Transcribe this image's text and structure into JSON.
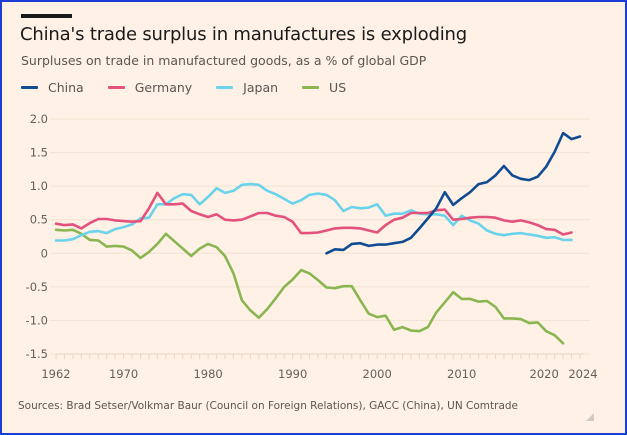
{
  "header": {
    "title": "China's trade surplus in manufactures is exploding",
    "subtitle": "Surpluses on trade in manufactured goods, as a % of global GDP"
  },
  "footer": {
    "source": "Sources: Brad Setser/Volkmar Baur (Council on Foreign Relations), GACC (China), UN Comtrade"
  },
  "chart_data": {
    "type": "line",
    "title": "China's trade surplus in manufactures is exploding",
    "subtitle": "Surpluses on trade in manufactured goods, as a % of global GDP",
    "xlabel": "",
    "ylabel": "",
    "xlim": [
      1962,
      2024
    ],
    "ylim": [
      -1.5,
      2.0
    ],
    "grid": true,
    "legend_position": "top-left",
    "x_ticks": [
      1962,
      1970,
      1980,
      1990,
      2000,
      2010,
      2020,
      2024
    ],
    "x_tick_labels": [
      "1962",
      "1970",
      "1980",
      "1990",
      "2000",
      "2010",
      "2020",
      "2024"
    ],
    "y_ticks": [
      2.0,
      1.5,
      1.0,
      0.5,
      0,
      -0.5,
      -1.0,
      -1.5
    ],
    "y_tick_labels": [
      "2.0",
      "1.5",
      "1.0",
      "0.5",
      "0",
      "-0.5",
      "-1.0",
      "-1.5"
    ],
    "series": [
      {
        "name": "China",
        "color": "#0f4c92",
        "start_year": 1994,
        "values": [
          0.0,
          0.06,
          0.05,
          0.14,
          0.15,
          0.11,
          0.13,
          0.13,
          0.15,
          0.17,
          0.23,
          0.37,
          0.52,
          0.67,
          0.91,
          0.72,
          0.82,
          0.91,
          1.03,
          1.06,
          1.16,
          1.3,
          1.16,
          1.11,
          1.09,
          1.14,
          1.29,
          1.51,
          1.79,
          1.7,
          1.74
        ]
      },
      {
        "name": "Germany",
        "color": "#e3527d",
        "start_year": 1962,
        "values": [
          0.44,
          0.42,
          0.43,
          0.37,
          0.45,
          0.51,
          0.51,
          0.49,
          0.48,
          0.47,
          0.48,
          0.67,
          0.9,
          0.73,
          0.73,
          0.74,
          0.63,
          0.58,
          0.54,
          0.58,
          0.5,
          0.49,
          0.5,
          0.55,
          0.6,
          0.6,
          0.56,
          0.54,
          0.47,
          0.3,
          0.3,
          0.31,
          0.34,
          0.37,
          0.38,
          0.38,
          0.37,
          0.34,
          0.31,
          0.42,
          0.5,
          0.53,
          0.6,
          0.6,
          0.6,
          0.64,
          0.65,
          0.5,
          0.51,
          0.53,
          0.54,
          0.54,
          0.53,
          0.49,
          0.47,
          0.49,
          0.46,
          0.42,
          0.36,
          0.35,
          0.28,
          0.31
        ]
      },
      {
        "name": "Japan",
        "color": "#6ad3ec",
        "start_year": 1962,
        "values": [
          0.19,
          0.19,
          0.21,
          0.27,
          0.32,
          0.33,
          0.3,
          0.36,
          0.39,
          0.43,
          0.52,
          0.53,
          0.73,
          0.73,
          0.82,
          0.88,
          0.87,
          0.73,
          0.84,
          0.97,
          0.9,
          0.93,
          1.02,
          1.03,
          1.02,
          0.93,
          0.88,
          0.81,
          0.74,
          0.79,
          0.87,
          0.89,
          0.87,
          0.79,
          0.63,
          0.69,
          0.67,
          0.68,
          0.73,
          0.56,
          0.59,
          0.59,
          0.64,
          0.59,
          0.58,
          0.58,
          0.56,
          0.42,
          0.56,
          0.49,
          0.44,
          0.34,
          0.29,
          0.27,
          0.29,
          0.3,
          0.28,
          0.26,
          0.23,
          0.24,
          0.2,
          0.2
        ]
      },
      {
        "name": "US",
        "color": "#8ab651",
        "start_year": 1962,
        "values": [
          0.35,
          0.34,
          0.35,
          0.29,
          0.2,
          0.19,
          0.1,
          0.11,
          0.1,
          0.04,
          -0.07,
          0.02,
          0.14,
          0.29,
          0.18,
          0.07,
          -0.04,
          0.07,
          0.14,
          0.09,
          -0.04,
          -0.3,
          -0.7,
          -0.85,
          -0.96,
          -0.83,
          -0.67,
          -0.5,
          -0.39,
          -0.25,
          -0.3,
          -0.4,
          -0.51,
          -0.52,
          -0.49,
          -0.49,
          -0.7,
          -0.9,
          -0.95,
          -0.93,
          -1.14,
          -1.1,
          -1.15,
          -1.16,
          -1.1,
          -0.88,
          -0.73,
          -0.58,
          -0.68,
          -0.68,
          -0.72,
          -0.71,
          -0.8,
          -0.97,
          -0.97,
          -0.98,
          -1.04,
          -1.03,
          -1.16,
          -1.22,
          -1.34
        ]
      }
    ]
  }
}
